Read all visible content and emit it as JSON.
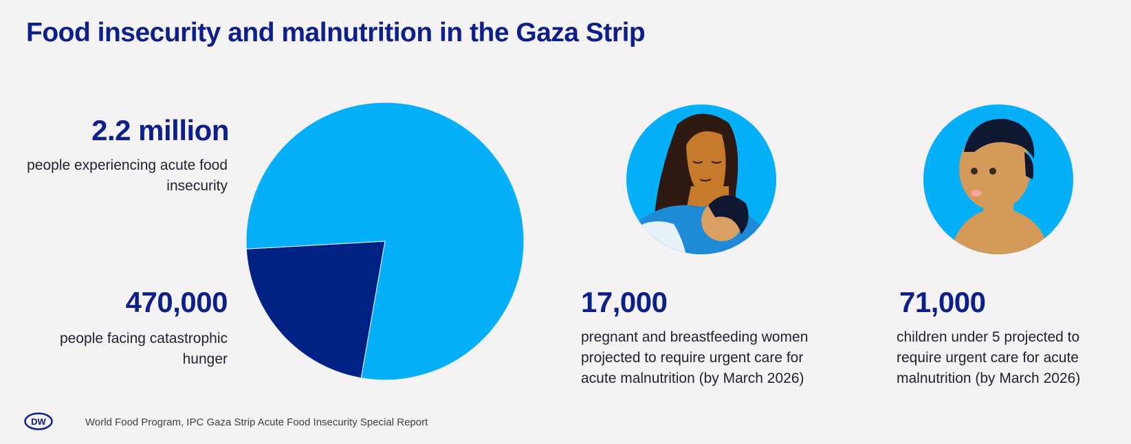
{
  "title": "Food insecurity and malnutrition in the Gaza Strip",
  "stats": {
    "total": {
      "value": "2.2 million",
      "label": "people experiencing acute food insecurity"
    },
    "catastrophic": {
      "value": "470,000",
      "label": "people facing catastrophic hunger"
    },
    "pregnant": {
      "value": "17,000",
      "label": "pregnant and breastfeeding women projected to require urgent care for acute malnutrition (by March 2026)"
    },
    "children": {
      "value": "71,000",
      "label": "children under 5 projected to require urgent care for acute malnutrition (by March 2026)"
    }
  },
  "chart_data": {
    "type": "pie",
    "categories": [
      "people facing catastrophic hunger",
      "people experiencing acute food insecurity"
    ],
    "values": [
      470000,
      1730000
    ],
    "total": 2200000,
    "colors": [
      "#002284",
      "#06b0f8"
    ]
  },
  "colors": {
    "title": "#0d1f8a",
    "light_blue": "#06b0f8",
    "dark_blue": "#002284",
    "background": "#f4f2f3"
  },
  "icons": [
    "mother-with-baby-icon",
    "child-portrait-icon",
    "dw-logo-icon"
  ],
  "footer": {
    "logo_text": "DW",
    "source": "World Food Program, IPC Gaza Strip Acute Food Insecurity Special Report"
  }
}
